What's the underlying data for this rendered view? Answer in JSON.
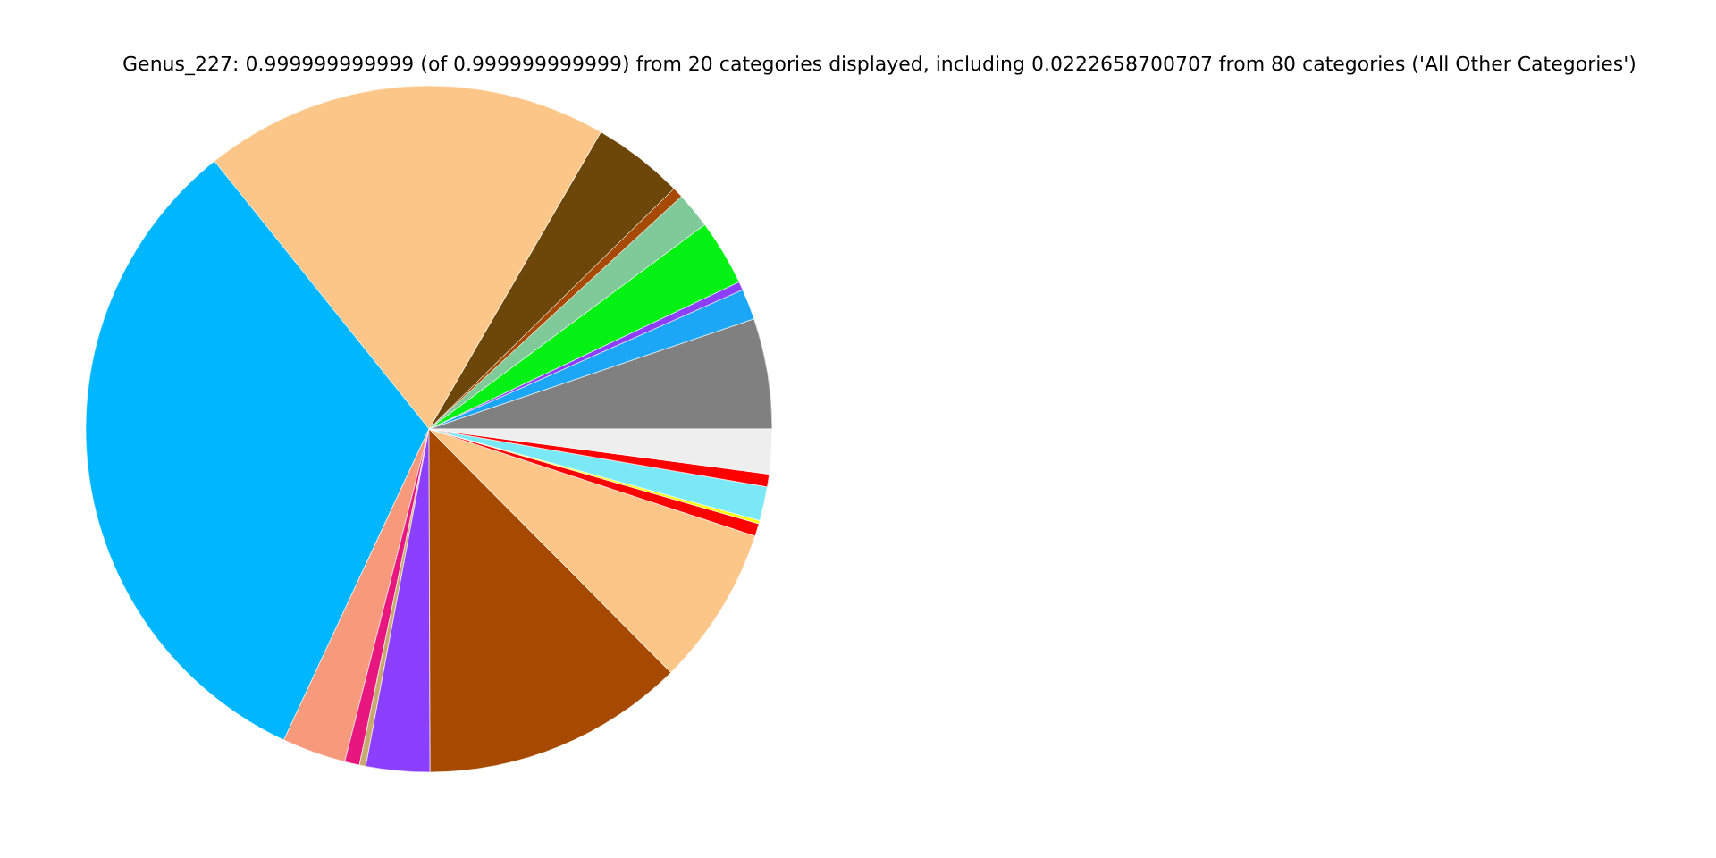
{
  "chart_data": {
    "type": "pie",
    "title": "Genus_227: 0.999999999999 (of 0.999999999999) from 20 categories displayed, including 0.0222658700707 from 80 categories ('All Other Categories')",
    "categories": [
      null,
      null,
      null,
      null,
      null,
      null,
      null,
      null,
      null,
      null,
      null,
      null,
      null,
      null,
      null,
      null,
      null,
      null,
      null,
      null
    ],
    "values": [
      5.2,
      1.45,
      0.4,
      3.1,
      1.7,
      0.5,
      4.3,
      19.1,
      32.3,
      3.0,
      0.7,
      0.3,
      3.0,
      12.4,
      7.5,
      0.6,
      0.15,
      1.6,
      0.6,
      2.1
    ],
    "colors": [
      "#808080",
      "#1ba7f5",
      "#8c3fff",
      "#04f213",
      "#80c998",
      "#a54a00",
      "#6d4609",
      "#fdc689",
      "#00b6ff",
      "#f79a7b",
      "#e8177f",
      "#c8a96e",
      "#8c3fff",
      "#a54a00",
      "#fdc689",
      "#ff0000",
      "#ffff00",
      "#7ae9f5",
      "#ff0000",
      "#eeeeee"
    ]
  }
}
